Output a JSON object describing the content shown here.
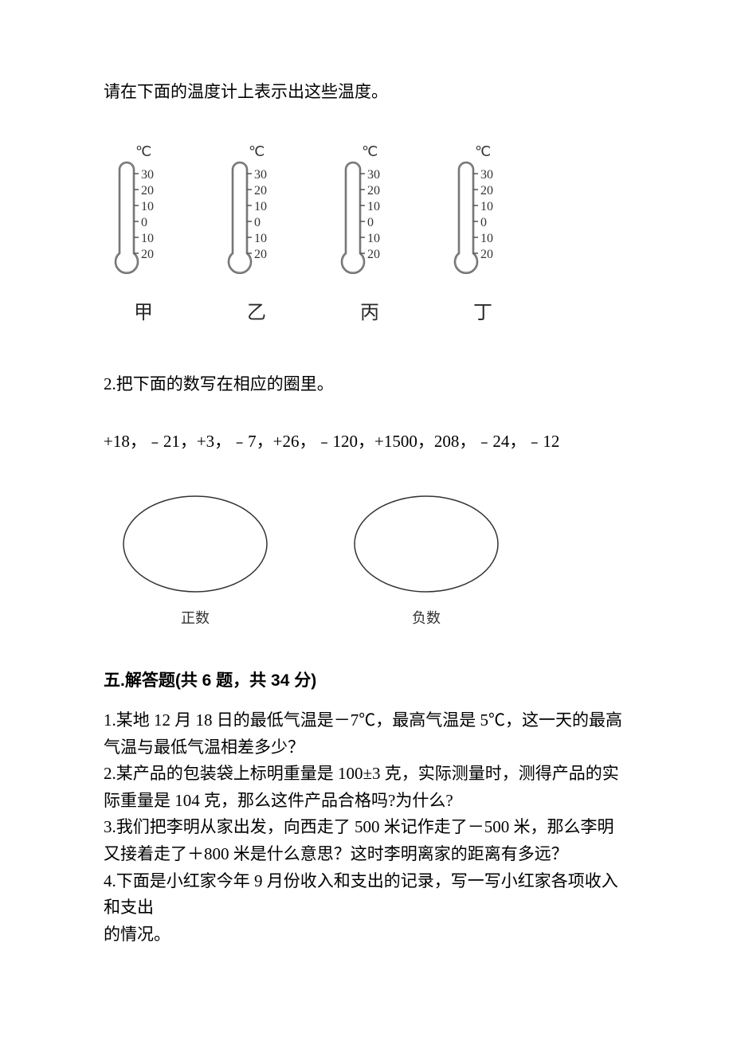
{
  "intro_text": "请在下面的温度计上表示出这些温度。",
  "thermometers": {
    "unit_label": "℃",
    "scale_labels": [
      "30",
      "20",
      "10",
      "0",
      "10",
      "20"
    ],
    "items": [
      {
        "caption": "甲"
      },
      {
        "caption": "乙"
      },
      {
        "caption": "丙"
      },
      {
        "caption": "丁"
      }
    ],
    "colors": {
      "stroke": "#555555",
      "fill": "#ffffff",
      "text": "#333333"
    }
  },
  "q2": {
    "prompt": "2.把下面的数写在相应的圈里。",
    "numbers": "+18，﹣21，+3，﹣7，+26，﹣120，+1500，208，﹣24，﹣12",
    "ovals": [
      {
        "label": "正数"
      },
      {
        "label": "负数"
      }
    ],
    "oval_stroke": "#333333"
  },
  "section5": {
    "heading": "五.解答题(共 6 题，共 34 分)",
    "questions": [
      "1.某地 12 月 18 日的最低气温是－7℃，最高气温是 5℃，这一天的最高气温与最低气温相差多少？",
      "2.某产品的包装袋上标明重量是 100±3 克，实际测量时，测得产品的实际重量是 104 克，那么这件产品合格吗?为什么?",
      "3.我们把李明从家出发，向西走了 500 米记作走了－500 米，那么李明又接着走了＋800 米是什么意思？这时李明离家的距离有多远？",
      "4.下面是小红家今年 9 月份收入和支出的记录，写一写小红家各项收入和支出",
      "的情况。"
    ]
  }
}
